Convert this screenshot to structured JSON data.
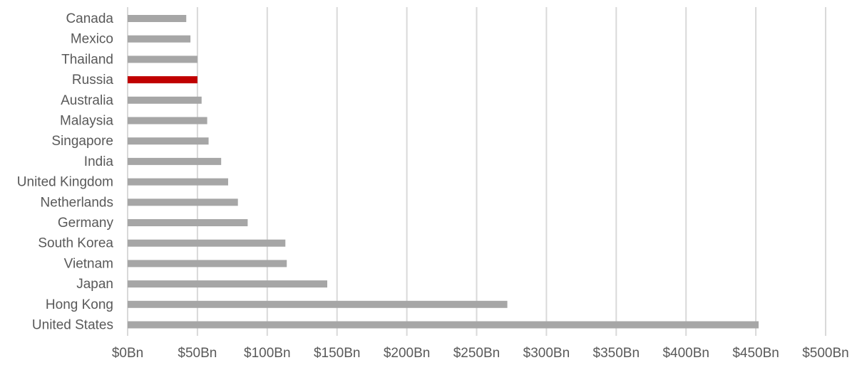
{
  "chart_data": {
    "type": "bar",
    "orientation": "horizontal",
    "title": "",
    "xlabel": "",
    "ylabel": "",
    "xlim": [
      0,
      500
    ],
    "x_ticks": [
      0,
      50,
      100,
      150,
      200,
      250,
      300,
      350,
      400,
      450,
      500
    ],
    "x_tick_labels": [
      "$0Bn",
      "$50Bn",
      "$100Bn",
      "$150Bn",
      "$200Bn",
      "$250Bn",
      "$300Bn",
      "$350Bn",
      "$400Bn",
      "$450Bn",
      "$500Bn"
    ],
    "grid": true,
    "categories": [
      "Canada",
      "Mexico",
      "Thailand",
      "Russia",
      "Australia",
      "Malaysia",
      "Singapore",
      "India",
      "United Kingdom",
      "Netherlands",
      "Germany",
      "South Korea",
      "Vietnam",
      "Japan",
      "Hong Kong",
      "United States"
    ],
    "values": [
      42,
      45,
      50,
      50,
      53,
      57,
      58,
      67,
      72,
      79,
      86,
      113,
      114,
      143,
      272,
      452
    ],
    "highlight_category": "Russia",
    "bar_color": "#a6a6a6",
    "highlight_color": "#c00000",
    "grid_color": "#d9d9d9",
    "text_color": "#595959"
  }
}
